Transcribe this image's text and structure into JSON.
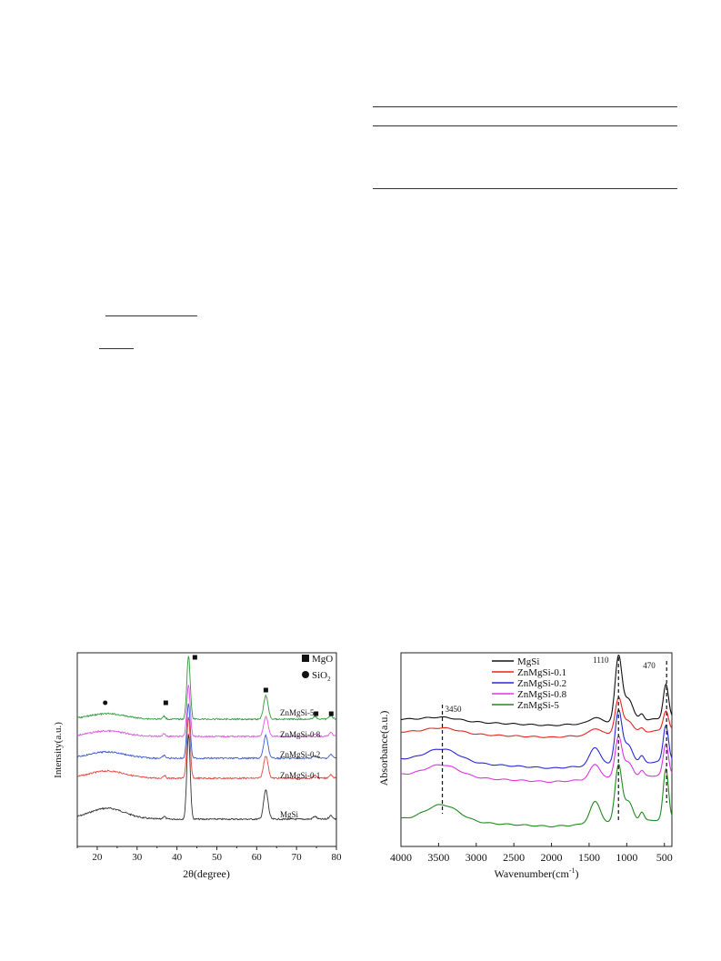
{
  "chart_data": [
    {
      "type": "line",
      "title": "",
      "xlabel": "2θ(degree)",
      "ylabel": "Intensity(a.u.)",
      "xlim": [
        15,
        80
      ],
      "xticks": [
        20,
        30,
        40,
        50,
        60,
        70,
        80
      ],
      "grid": false,
      "legend": [
        {
          "marker": "square",
          "label": "MgO"
        },
        {
          "marker": "circle",
          "label": "SiO",
          "sub": "2"
        }
      ],
      "series": [
        {
          "name": "MgSi",
          "color": "#333333"
        },
        {
          "name": "ZnMgSi-0.1",
          "color": "#e8463c"
        },
        {
          "name": "ZnMgSi-0.2",
          "color": "#3d5ad6"
        },
        {
          "name": "ZnMgSi-0.8",
          "color": "#e255e2"
        },
        {
          "name": "ZnMgSi-5",
          "color": "#2e9a3a"
        }
      ],
      "peaks": [
        {
          "x": 22.0,
          "phase": "SiO2"
        },
        {
          "x": 36.8,
          "phase": "MgO"
        },
        {
          "x": 42.9,
          "phase": "MgO"
        },
        {
          "x": 62.3,
          "phase": "MgO"
        },
        {
          "x": 74.6,
          "phase": "MgO"
        },
        {
          "x": 78.6,
          "phase": "MgO"
        }
      ]
    },
    {
      "type": "line",
      "title": "",
      "xlabel": "Wavenumber(cm",
      "xlabel_sup": "-1",
      "xlabel_end": ")",
      "ylabel": "Absorbance(a.u.)",
      "xlim": [
        4000,
        400
      ],
      "xticks": [
        4000,
        3500,
        3000,
        2500,
        2000,
        1500,
        1000,
        500
      ],
      "grid": false,
      "series": [
        {
          "name": "MgSi",
          "color": "#111111"
        },
        {
          "name": "ZnMgSi-0.1",
          "color": "#e8231f"
        },
        {
          "name": "ZnMgSi-0.2",
          "color": "#2828d8"
        },
        {
          "name": "ZnMgSi-0.8",
          "color": "#e033e0"
        },
        {
          "name": "ZnMgSi-5",
          "color": "#1f8a1f"
        }
      ],
      "annotations": [
        {
          "x": 3450,
          "label": "3450"
        },
        {
          "x": 1110,
          "label": "1110"
        },
        {
          "x": 470,
          "label": "470"
        }
      ]
    }
  ]
}
